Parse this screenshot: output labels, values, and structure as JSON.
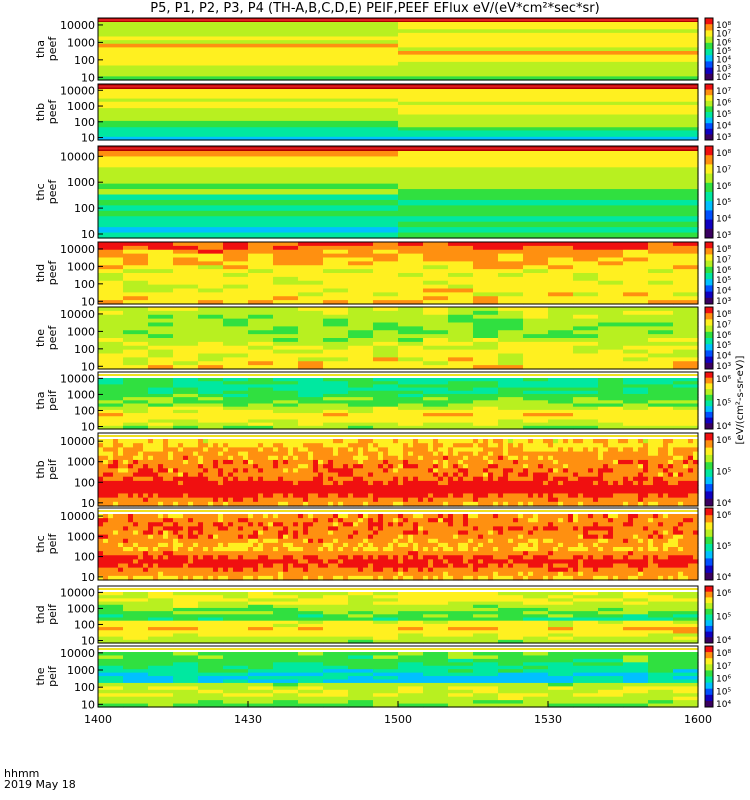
{
  "title": "P5, P1, P2, P3, P4 (TH-A,B,C,D,E) PEIF,PEEF EFlux eV/(eV*cm²*sec*sr)",
  "footer": {
    "time_label": "hhmm",
    "date_label": "2019 May 18"
  },
  "colorbar_unit": "[eV/(cm²-s-sr-eV)]",
  "colors": {
    "scale": [
      "#3a0060",
      "#1000c0",
      "#0050ff",
      "#00c0ff",
      "#00e8a0",
      "#30e040",
      "#b8f020",
      "#fff020",
      "#ff9010",
      "#f01010"
    ],
    "saturated": "#b00000",
    "frame": "#000000"
  },
  "chart_data": {
    "type": "heatmap",
    "x_ticks": [
      "1400",
      "1430",
      "1500",
      "1530",
      "1600"
    ],
    "x_range": [
      0,
      120
    ],
    "y_scale": "log",
    "y_ticks": [
      "10",
      "100",
      "1000",
      "10000"
    ],
    "panels": [
      {
        "probe": "tha",
        "species": "peef",
        "ylabel": [
          "tha",
          "peef"
        ],
        "cb": [
          "10⁸",
          "10⁷",
          "10⁶",
          "10⁵",
          "10⁴",
          "10³",
          "10²"
        ],
        "base": 6.3,
        "columns": 1
      },
      {
        "probe": "thb",
        "species": "peef",
        "ylabel": [
          "thb",
          "peef"
        ],
        "cb": [
          "10⁷",
          "10⁶",
          "10⁵",
          "10⁴",
          "10³"
        ],
        "base": 6.0,
        "columns": 1
      },
      {
        "probe": "thc",
        "species": "peef",
        "ylabel": [
          "thc",
          "peef"
        ],
        "cb": [
          "10⁸",
          "10⁷",
          "10⁶",
          "10⁵",
          "10⁴",
          "10³"
        ],
        "base": 6.0,
        "columns": 1
      },
      {
        "probe": "thd",
        "species": "peef",
        "ylabel": [
          "thd",
          "peef"
        ],
        "cb": [
          "10⁸",
          "10⁷",
          "10⁶",
          "10⁵",
          "10⁴",
          "10³"
        ],
        "base": 8.5,
        "columns": 12
      },
      {
        "probe": "the",
        "species": "peef",
        "ylabel": [
          "the",
          "peef"
        ],
        "cb": [
          "10⁸",
          "10⁷",
          "10⁶",
          "10⁵",
          "10⁴",
          "10³"
        ],
        "base": 7.2,
        "columns": 12
      },
      {
        "probe": "tha",
        "species": "peif",
        "ylabel": [
          "tha",
          "peif"
        ],
        "cb": [
          "10⁶",
          "10⁵",
          "10⁴"
        ],
        "base": 5.5,
        "columns": 12
      },
      {
        "probe": "thb",
        "species": "peif",
        "ylabel": [
          "thb",
          "peif"
        ],
        "cb": [
          "10⁶",
          "10⁵",
          "10⁴"
        ],
        "base": 7.5,
        "columns": 60
      },
      {
        "probe": "thc",
        "species": "peif",
        "ylabel": [
          "thc",
          "peif"
        ],
        "cb": [
          "10⁶",
          "10⁵",
          "10⁴"
        ],
        "base": 7.2,
        "columns": 60
      },
      {
        "probe": "thd",
        "species": "peif",
        "ylabel": [
          "thd",
          "peif"
        ],
        "cb": [
          "10⁶",
          "10⁵",
          "10⁴"
        ],
        "base": 5.6,
        "columns": 12
      },
      {
        "probe": "the",
        "species": "peif",
        "ylabel": [
          "the",
          "peif"
        ],
        "cb": [
          "10⁸",
          "10⁷",
          "10⁶",
          "10⁵",
          "10⁴"
        ],
        "base": 5.0,
        "columns": 12
      }
    ]
  }
}
